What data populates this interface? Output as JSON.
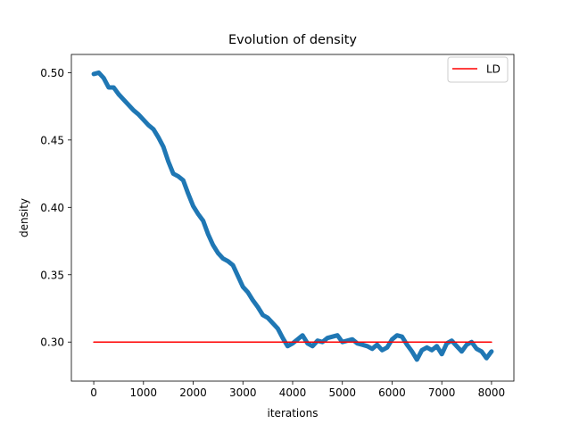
{
  "chart_data": {
    "type": "line",
    "title": "Evolution of density",
    "xlabel": "iterations",
    "ylabel": "density",
    "xlim": [
      -450,
      8450
    ],
    "ylim": [
      0.271,
      0.5135
    ],
    "xticks": [
      0,
      1000,
      2000,
      3000,
      4000,
      5000,
      6000,
      7000,
      8000
    ],
    "xtick_labels": [
      "0",
      "1000",
      "2000",
      "3000",
      "4000",
      "5000",
      "6000",
      "7000",
      "8000"
    ],
    "yticks": [
      0.3,
      0.35,
      0.4,
      0.45,
      0.5
    ],
    "ytick_labels": [
      "0.30",
      "0.35",
      "0.40",
      "0.45",
      "0.50"
    ],
    "legend_position": "upper right",
    "series": [
      {
        "name": "density",
        "color": "#1f77b4",
        "x": [
          0,
          100,
          200,
          300,
          400,
          500,
          600,
          700,
          800,
          900,
          1000,
          1100,
          1200,
          1300,
          1400,
          1500,
          1600,
          1700,
          1800,
          1900,
          2000,
          2100,
          2200,
          2300,
          2400,
          2500,
          2600,
          2700,
          2800,
          2900,
          3000,
          3100,
          3200,
          3300,
          3400,
          3500,
          3600,
          3700,
          3800,
          3900,
          4000,
          4100,
          4200,
          4300,
          4400,
          4500,
          4600,
          4700,
          4800,
          4900,
          5000,
          5100,
          5200,
          5300,
          5400,
          5500,
          5600,
          5700,
          5800,
          5900,
          6000,
          6100,
          6200,
          6300,
          6400,
          6500,
          6600,
          6700,
          6800,
          6900,
          7000,
          7100,
          7200,
          7300,
          7400,
          7500,
          7600,
          7700,
          7800,
          7900,
          8000
        ],
        "y": [
          0.499,
          0.5,
          0.496,
          0.489,
          0.489,
          0.484,
          0.48,
          0.476,
          0.472,
          0.469,
          0.465,
          0.461,
          0.458,
          0.452,
          0.445,
          0.434,
          0.425,
          0.423,
          0.42,
          0.41,
          0.401,
          0.395,
          0.39,
          0.38,
          0.372,
          0.366,
          0.362,
          0.36,
          0.357,
          0.349,
          0.341,
          0.337,
          0.331,
          0.326,
          0.32,
          0.318,
          0.314,
          0.31,
          0.303,
          0.297,
          0.299,
          0.302,
          0.305,
          0.299,
          0.297,
          0.301,
          0.3,
          0.303,
          0.304,
          0.305,
          0.3,
          0.301,
          0.302,
          0.299,
          0.298,
          0.297,
          0.295,
          0.298,
          0.294,
          0.296,
          0.302,
          0.305,
          0.304,
          0.298,
          0.293,
          0.287,
          0.294,
          0.296,
          0.294,
          0.297,
          0.291,
          0.299,
          0.301,
          0.297,
          0.293,
          0.298,
          0.3,
          0.295,
          0.293,
          0.288,
          0.293
        ]
      },
      {
        "name": "LD",
        "color": "#ff0000",
        "x": [
          0,
          8000
        ],
        "y": [
          0.3,
          0.3
        ]
      }
    ],
    "legend": [
      "LD"
    ]
  }
}
